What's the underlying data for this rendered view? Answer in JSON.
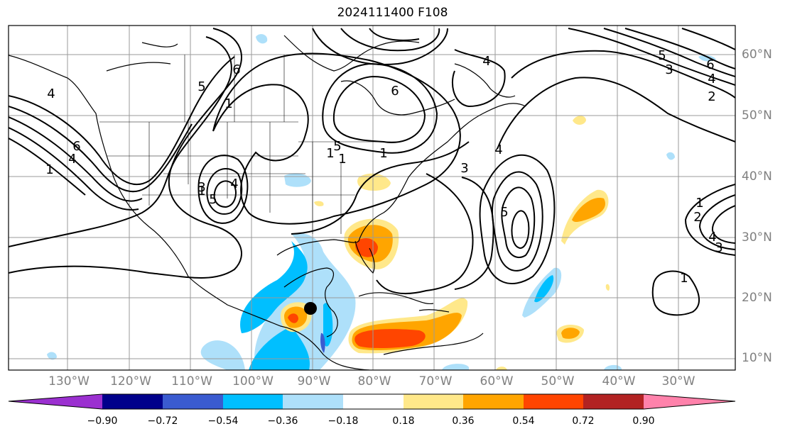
{
  "title": "2024111400 F108",
  "lat_labels": [
    "60°N",
    "50°N",
    "40°N",
    "30°N",
    "20°N",
    "10°N"
  ],
  "lon_labels": [
    "130°W",
    "120°W",
    "110°W",
    "100°W",
    "90°W",
    "80°W",
    "70°W",
    "60°W",
    "50°W",
    "40°W",
    "30°W"
  ],
  "contour_labels": [
    "5",
    "6",
    "4",
    "1",
    "6",
    "4",
    "1",
    "1",
    "6",
    "4",
    "5",
    "3",
    "2",
    "1",
    "6",
    "5",
    "4",
    "1",
    "4",
    "3",
    "1",
    "5",
    "3",
    "4",
    "5",
    "1",
    "2",
    "3",
    "4",
    "1"
  ],
  "colorbar": {
    "ticks": [
      "−0.90",
      "−0.72",
      "−0.54",
      "−0.36",
      "−0.18",
      "0.18",
      "0.36",
      "0.54",
      "0.72",
      "0.90"
    ],
    "colors": [
      "#9b30d0",
      "#00008b",
      "#3a5bd0",
      "#00bfff",
      "#aee0fa",
      "#ffffff",
      "#ffe88a",
      "#ffa500",
      "#ff4500",
      "#b22222",
      "#ff82ab"
    ]
  }
}
